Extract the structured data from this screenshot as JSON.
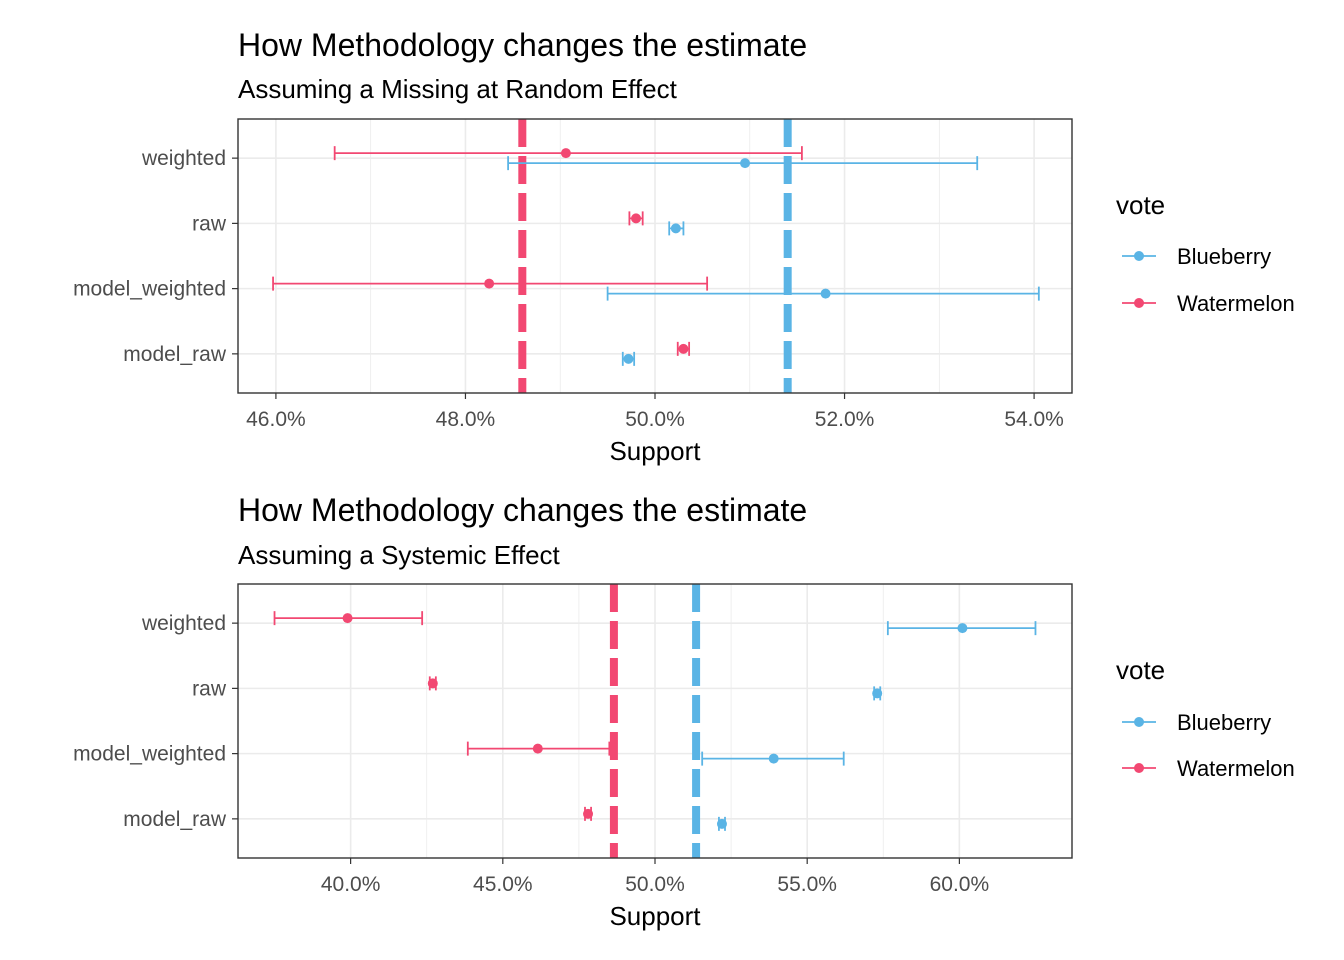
{
  "colors": {
    "Blueberry": "#5ab4e5",
    "Watermelon": "#f24872",
    "grid": "#ebebeb",
    "panel_border": "#333333"
  },
  "chart_data": [
    {
      "type": "errorbar",
      "title": "How Methodology changes the estimate",
      "subtitle": "Assuming a Missing at Random Effect",
      "xlabel": "Support",
      "ylabel": "",
      "xlim": [
        45.6,
        54.4
      ],
      "xticks": [
        46,
        48,
        50,
        52,
        54
      ],
      "xtick_labels": [
        "46.0%",
        "48.0%",
        "50.0%",
        "52.0%",
        "54.0%"
      ],
      "categories": [
        "weighted",
        "raw",
        "model_weighted",
        "model_raw"
      ],
      "legend": {
        "title": "vote",
        "position": "right"
      },
      "grid": true,
      "vlines": [
        {
          "series": "Watermelon",
          "x": 48.6,
          "style": "dashed"
        },
        {
          "series": "Blueberry",
          "x": 51.4,
          "style": "dashed"
        }
      ],
      "series": [
        {
          "name": "Blueberry",
          "points": [
            {
              "category": "weighted",
              "value": 50.95,
              "low": 48.45,
              "high": 53.4
            },
            {
              "category": "raw",
              "value": 50.22,
              "low": 50.15,
              "high": 50.3
            },
            {
              "category": "model_weighted",
              "value": 51.8,
              "low": 49.5,
              "high": 54.05
            },
            {
              "category": "model_raw",
              "value": 49.72,
              "low": 49.66,
              "high": 49.78
            }
          ]
        },
        {
          "name": "Watermelon",
          "points": [
            {
              "category": "weighted",
              "value": 49.06,
              "low": 46.62,
              "high": 51.55
            },
            {
              "category": "raw",
              "value": 49.8,
              "low": 49.73,
              "high": 49.87
            },
            {
              "category": "model_weighted",
              "value": 48.25,
              "low": 45.97,
              "high": 50.55
            },
            {
              "category": "model_raw",
              "value": 50.3,
              "low": 50.24,
              "high": 50.36
            }
          ]
        }
      ]
    },
    {
      "type": "errorbar",
      "title": "How Methodology changes the estimate",
      "subtitle": "Assuming a Systemic Effect",
      "xlabel": "Support",
      "ylabel": "",
      "xlim": [
        36.3,
        63.7
      ],
      "xticks": [
        40,
        45,
        50,
        55,
        60
      ],
      "xtick_labels": [
        "40.0%",
        "45.0%",
        "50.0%",
        "55.0%",
        "60.0%"
      ],
      "categories": [
        "weighted",
        "raw",
        "model_weighted",
        "model_raw"
      ],
      "legend": {
        "title": "vote",
        "position": "right"
      },
      "grid": true,
      "vlines": [
        {
          "series": "Watermelon",
          "x": 48.65,
          "style": "dashed"
        },
        {
          "series": "Blueberry",
          "x": 51.35,
          "style": "dashed"
        }
      ],
      "series": [
        {
          "name": "Blueberry",
          "points": [
            {
              "category": "weighted",
              "value": 60.1,
              "low": 57.65,
              "high": 62.5
            },
            {
              "category": "raw",
              "value": 57.3,
              "low": 57.2,
              "high": 57.4
            },
            {
              "category": "model_weighted",
              "value": 53.9,
              "low": 51.55,
              "high": 56.2
            },
            {
              "category": "model_raw",
              "value": 52.2,
              "low": 52.1,
              "high": 52.3
            }
          ]
        },
        {
          "name": "Watermelon",
          "points": [
            {
              "category": "weighted",
              "value": 39.9,
              "low": 37.5,
              "high": 42.35
            },
            {
              "category": "raw",
              "value": 42.7,
              "low": 42.6,
              "high": 42.8
            },
            {
              "category": "model_weighted",
              "value": 46.15,
              "low": 43.85,
              "high": 48.5
            },
            {
              "category": "model_raw",
              "value": 47.8,
              "low": 47.7,
              "high": 47.9
            }
          ]
        }
      ]
    }
  ]
}
